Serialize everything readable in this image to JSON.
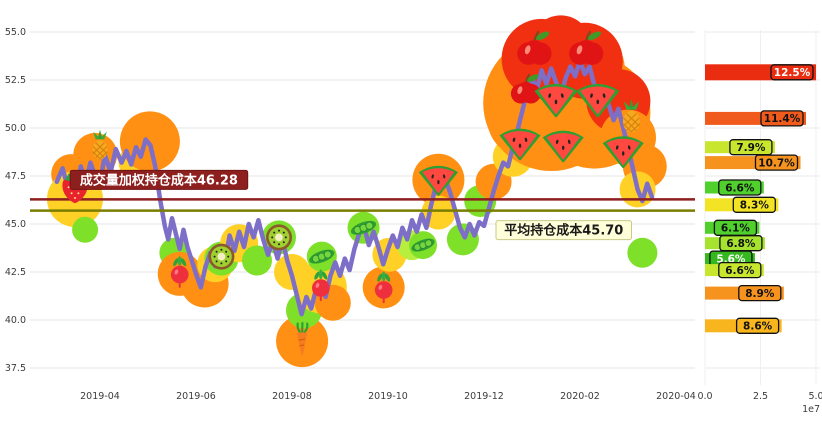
{
  "chart_data": [
    {
      "name": "price-history",
      "type": "line",
      "x_axis": {
        "ticks": [
          "2019-04",
          "2019-06",
          "2019-08",
          "2019-10",
          "2019-12",
          "2020-02",
          "2020-04"
        ],
        "tick_months": [
          1,
          3,
          5,
          7,
          9,
          11,
          13
        ]
      },
      "y_axis": {
        "ticks": [
          "37.5",
          "40.0",
          "42.5",
          "45.0",
          "47.5",
          "50.0",
          "52.5",
          "55.0"
        ],
        "values": [
          37.5,
          40.0,
          42.5,
          45.0,
          47.5,
          50.0,
          52.5,
          55.0
        ],
        "range": [
          36.3,
          56.2
        ]
      },
      "grid": true,
      "line": {
        "color": "#7d6ec8",
        "width": 4.5,
        "points": [
          [
            0.1,
            47.2
          ],
          [
            0.22,
            47.9
          ],
          [
            0.33,
            46.9
          ],
          [
            0.42,
            47.6
          ],
          [
            0.5,
            46.5
          ],
          [
            0.6,
            48.0
          ],
          [
            0.7,
            47.1
          ],
          [
            0.8,
            48.2
          ],
          [
            0.9,
            47.5
          ],
          [
            1.0,
            47.1
          ],
          [
            1.1,
            48.6
          ],
          [
            1.22,
            47.7
          ],
          [
            1.33,
            48.9
          ],
          [
            1.45,
            48.2
          ],
          [
            1.55,
            48.8
          ],
          [
            1.65,
            48.1
          ],
          [
            1.75,
            49.0
          ],
          [
            1.85,
            48.5
          ],
          [
            1.95,
            49.4
          ],
          [
            2.05,
            49.1
          ],
          [
            2.15,
            48.0
          ],
          [
            2.25,
            46.3
          ],
          [
            2.35,
            44.9
          ],
          [
            2.42,
            44.2
          ],
          [
            2.5,
            45.3
          ],
          [
            2.58,
            44.5
          ],
          [
            2.66,
            43.7
          ],
          [
            2.74,
            44.7
          ],
          [
            2.82,
            43.8
          ],
          [
            2.9,
            43.2
          ],
          [
            3.0,
            42.4
          ],
          [
            3.1,
            41.7
          ],
          [
            3.2,
            42.8
          ],
          [
            3.3,
            43.5
          ],
          [
            3.4,
            42.8
          ],
          [
            3.5,
            43.7
          ],
          [
            3.6,
            43.0
          ],
          [
            3.7,
            44.4
          ],
          [
            3.8,
            43.6
          ],
          [
            3.9,
            44.6
          ],
          [
            4.0,
            43.8
          ],
          [
            4.1,
            45.0
          ],
          [
            4.2,
            44.3
          ],
          [
            4.3,
            45.2
          ],
          [
            4.4,
            44.2
          ],
          [
            4.5,
            43.4
          ],
          [
            4.6,
            44.1
          ],
          [
            4.7,
            43.2
          ],
          [
            4.8,
            44.2
          ],
          [
            4.9,
            43.1
          ],
          [
            5.0,
            42.3
          ],
          [
            5.1,
            41.3
          ],
          [
            5.2,
            40.3
          ],
          [
            5.3,
            41.2
          ],
          [
            5.4,
            40.6
          ],
          [
            5.5,
            41.6
          ],
          [
            5.6,
            41.9
          ],
          [
            5.7,
            41.2
          ],
          [
            5.8,
            42.3
          ],
          [
            5.9,
            43.0
          ],
          [
            6.0,
            42.3
          ],
          [
            6.1,
            43.2
          ],
          [
            6.2,
            42.6
          ],
          [
            6.3,
            43.7
          ],
          [
            6.4,
            44.5
          ],
          [
            6.5,
            44.9
          ],
          [
            6.6,
            43.9
          ],
          [
            6.7,
            44.6
          ],
          [
            6.8,
            43.8
          ],
          [
            6.9,
            42.9
          ],
          [
            7.0,
            43.7
          ],
          [
            7.1,
            44.4
          ],
          [
            7.2,
            43.8
          ],
          [
            7.3,
            44.8
          ],
          [
            7.4,
            44.2
          ],
          [
            7.5,
            45.2
          ],
          [
            7.6,
            44.6
          ],
          [
            7.7,
            45.5
          ],
          [
            7.8,
            44.8
          ],
          [
            7.9,
            46.0
          ],
          [
            8.0,
            47.0
          ],
          [
            8.1,
            47.6
          ],
          [
            8.2,
            47.3
          ],
          [
            8.3,
            46.6
          ],
          [
            8.4,
            45.7
          ],
          [
            8.5,
            44.8
          ],
          [
            8.6,
            44.3
          ],
          [
            8.7,
            45.0
          ],
          [
            8.8,
            44.4
          ],
          [
            8.9,
            45.1
          ],
          [
            9.0,
            44.9
          ],
          [
            9.1,
            45.8
          ],
          [
            9.2,
            46.7
          ],
          [
            9.3,
            47.5
          ],
          [
            9.4,
            48.2
          ],
          [
            9.5,
            48.0
          ],
          [
            9.6,
            49.0
          ],
          [
            9.7,
            49.9
          ],
          [
            9.8,
            50.9
          ],
          [
            9.9,
            51.9
          ],
          [
            10.0,
            52.6
          ],
          [
            10.1,
            52.0
          ],
          [
            10.2,
            53.0
          ],
          [
            10.3,
            52.3
          ],
          [
            10.4,
            53.1
          ],
          [
            10.5,
            52.4
          ],
          [
            10.6,
            51.7
          ],
          [
            10.7,
            52.6
          ],
          [
            10.8,
            53.2
          ],
          [
            10.9,
            52.7
          ],
          [
            11.0,
            53.5
          ],
          [
            11.1,
            52.8
          ],
          [
            11.2,
            53.2
          ],
          [
            11.3,
            52.2
          ],
          [
            11.4,
            51.5
          ],
          [
            11.5,
            52.1
          ],
          [
            11.6,
            51.2
          ],
          [
            11.7,
            50.4
          ],
          [
            11.8,
            51.0
          ],
          [
            11.9,
            50.0
          ],
          [
            12.0,
            49.0
          ],
          [
            12.1,
            47.9
          ],
          [
            12.2,
            46.8
          ],
          [
            12.3,
            46.2
          ],
          [
            12.4,
            47.1
          ],
          [
            12.5,
            46.4
          ]
        ]
      },
      "ref_lines": [
        {
          "value": 46.28,
          "color": "#8e1f1f",
          "width": 2.5,
          "label": "成交量加权持仓成本46.28",
          "label_fg": "#ffffff",
          "label_bg": "#8e1f1f",
          "label_border": "#6e1414",
          "label_x_month": 0.38,
          "label_side": "above"
        },
        {
          "value": 45.7,
          "color": "#7a7d00",
          "width": 2.5,
          "label": "平均持仓成本45.70",
          "label_fg": "#1a1a1a",
          "label_bg": "#ffffd9",
          "label_border": "#c9c98a",
          "label_x_month": 9.25,
          "label_side": "below"
        }
      ],
      "bubbles": [
        [
          0.4,
          47.6,
          20,
          "#ff9013"
        ],
        [
          0.48,
          46.3,
          28,
          "#ffd026"
        ],
        [
          0.69,
          44.7,
          13,
          "#7fe02a"
        ],
        [
          0.9,
          48.6,
          22,
          "#ff9013"
        ],
        [
          1.76,
          48.2,
          18,
          "#ffd026"
        ],
        [
          2.04,
          49.3,
          30,
          "#ff9013"
        ],
        [
          2.55,
          43.5,
          15,
          "#7fe02a"
        ],
        [
          2.66,
          42.4,
          22,
          "#ff9013"
        ],
        [
          3.18,
          41.9,
          24,
          "#ff9013"
        ],
        [
          3.4,
          42.9,
          18,
          "#ffd026"
        ],
        [
          3.53,
          43.2,
          17,
          "#7fe02a"
        ],
        [
          3.9,
          44.0,
          19,
          "#ffd026"
        ],
        [
          4.27,
          43.1,
          15,
          "#7fe02a"
        ],
        [
          4.73,
          44.3,
          17,
          "#7fe02a"
        ],
        [
          5.0,
          42.5,
          18,
          "#ffd026"
        ],
        [
          5.21,
          38.9,
          26,
          "#ff9013"
        ],
        [
          5.25,
          40.5,
          18,
          "#7fe02a"
        ],
        [
          5.6,
          41.7,
          26,
          "#ffd026"
        ],
        [
          5.85,
          40.9,
          18,
          "#ff9013"
        ],
        [
          5.62,
          43.3,
          15,
          "#7fe02a"
        ],
        [
          6.49,
          44.8,
          16,
          "#7fe02a"
        ],
        [
          6.91,
          41.7,
          21,
          "#ff9013"
        ],
        [
          7.03,
          43.4,
          17,
          "#ffd026"
        ],
        [
          7.5,
          43.9,
          15,
          "#b8ef3e"
        ],
        [
          7.73,
          43.9,
          14,
          "#7fe02a"
        ],
        [
          8.05,
          47.3,
          26,
          "#ff9013"
        ],
        [
          8.05,
          45.6,
          17,
          "#ffd026"
        ],
        [
          8.56,
          44.2,
          16,
          "#7fe02a"
        ],
        [
          8.92,
          46.2,
          16,
          "#7fe02a"
        ],
        [
          9.2,
          47.2,
          18,
          "#ff9013"
        ],
        [
          9.6,
          48.5,
          20,
          "#ffd026"
        ],
        [
          10.4,
          51.3,
          68,
          "#ff9013"
        ],
        [
          11.3,
          50.8,
          56,
          "#ff9013"
        ],
        [
          9.9,
          50.5,
          40,
          "#ff9013"
        ],
        [
          11.0,
          53.0,
          45,
          "#ff9013"
        ],
        [
          10.2,
          53.6,
          40,
          "#f03010"
        ],
        [
          11.1,
          53.5,
          38,
          "#f03010"
        ],
        [
          10.6,
          54.3,
          30,
          "#f03010"
        ],
        [
          11.8,
          51.4,
          32,
          "#f03010"
        ],
        [
          12.0,
          49.5,
          28,
          "#ff9013"
        ],
        [
          12.35,
          48.0,
          22,
          "#ff9013"
        ],
        [
          12.2,
          46.8,
          18,
          "#ffd026"
        ],
        [
          12.3,
          43.5,
          15,
          "#7fe02a"
        ]
      ],
      "fruit_markers": [
        {
          "type": "strawberry",
          "m": 0.48,
          "p": 47.0,
          "s": 20
        },
        {
          "type": "pineapple",
          "m": 1.0,
          "p": 49.1,
          "s": 15
        },
        {
          "type": "radish",
          "m": 2.66,
          "p": 42.5,
          "s": 13
        },
        {
          "type": "kiwi",
          "m": 3.53,
          "p": 43.3,
          "s": 13
        },
        {
          "type": "kiwi",
          "m": 4.73,
          "p": 44.3,
          "s": 13
        },
        {
          "type": "carrot",
          "m": 5.21,
          "p": 39.0,
          "s": 17
        },
        {
          "type": "radish",
          "m": 5.6,
          "p": 41.8,
          "s": 13
        },
        {
          "type": "peas",
          "m": 5.62,
          "p": 43.3,
          "s": 14
        },
        {
          "type": "peas",
          "m": 6.49,
          "p": 44.8,
          "s": 14
        },
        {
          "type": "radish",
          "m": 6.91,
          "p": 41.7,
          "s": 13
        },
        {
          "type": "peas",
          "m": 7.73,
          "p": 43.9,
          "s": 13
        },
        {
          "type": "watermelon",
          "m": 8.05,
          "p": 47.4,
          "s": 19
        },
        {
          "type": "watermelon",
          "m": 9.75,
          "p": 49.3,
          "s": 20
        },
        {
          "type": "apple",
          "m": 9.87,
          "p": 51.9,
          "s": 21
        },
        {
          "type": "apple",
          "m": 10.05,
          "p": 54.0,
          "s": 24
        },
        {
          "type": "watermelon",
          "m": 10.5,
          "p": 51.6,
          "s": 21
        },
        {
          "type": "watermelon",
          "m": 10.65,
          "p": 49.2,
          "s": 20
        },
        {
          "type": "apple",
          "m": 11.13,
          "p": 54.0,
          "s": 24
        },
        {
          "type": "watermelon",
          "m": 11.37,
          "p": 51.6,
          "s": 21
        },
        {
          "type": "watermelon",
          "m": 11.9,
          "p": 48.9,
          "s": 20
        },
        {
          "type": "pineapple",
          "m": 12.07,
          "p": 50.6,
          "s": 17
        }
      ]
    },
    {
      "name": "volume-by-price",
      "type": "bar",
      "orientation": "horizontal",
      "x_axis": {
        "ticks": [
          "0.0",
          "2.5",
          "5.0"
        ],
        "values": [
          0,
          25000000,
          50000000
        ],
        "exponent": "1e7"
      },
      "bars": [
        {
          "price": 52.9,
          "volume": 50000000,
          "pct": "12.5%",
          "color": "#ea2c10",
          "h": 16
        },
        {
          "price": 50.5,
          "volume": 45500000,
          "pct": "11.4%",
          "color": "#f05a1c",
          "h": 13
        },
        {
          "price": 49.0,
          "volume": 31500000,
          "pct": "7.9%",
          "color": "#c8e62e",
          "h": 12
        },
        {
          "price": 48.2,
          "volume": 43000000,
          "pct": "10.7%",
          "color": "#f6921e",
          "h": 13
        },
        {
          "price": 46.9,
          "volume": 26500000,
          "pct": "6.6%",
          "color": "#4fd02c",
          "h": 12
        },
        {
          "price": 46.0,
          "volume": 33000000,
          "pct": "8.3%",
          "color": "#f2e424",
          "h": 13
        },
        {
          "price": 44.8,
          "volume": 24500000,
          "pct": "6.1%",
          "color": "#4fd02c",
          "h": 12
        },
        {
          "price": 44.0,
          "volume": 27000000,
          "pct": "6.8%",
          "color": "#a5e32e",
          "h": 12
        },
        {
          "price": 43.2,
          "volume": 22500000,
          "pct": "5.6%",
          "color": "#35b81e",
          "h": 11
        },
        {
          "price": 42.6,
          "volume": 26500000,
          "pct": "6.6%",
          "color": "#c8e62e",
          "h": 12
        },
        {
          "price": 41.4,
          "volume": 35500000,
          "pct": "8.9%",
          "color": "#f6921e",
          "h": 13
        },
        {
          "price": 39.7,
          "volume": 34500000,
          "pct": "8.6%",
          "color": "#f8b51e",
          "h": 13
        }
      ]
    }
  ]
}
